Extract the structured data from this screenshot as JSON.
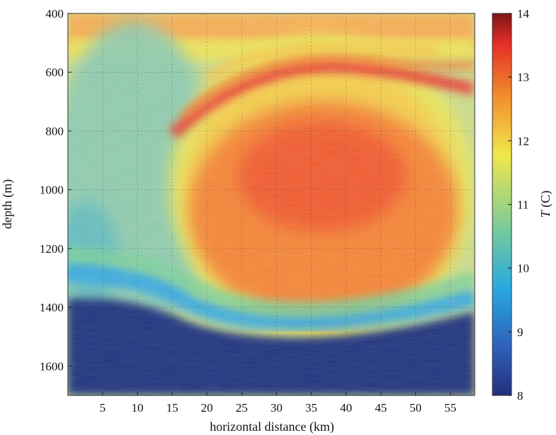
{
  "chart_data": {
    "type": "heatmap",
    "title": "",
    "xlabel": "horizontal distance (km)",
    "ylabel": "depth (m)",
    "xlim": [
      0,
      58.5
    ],
    "ylim": [
      400,
      1700
    ],
    "y_inverted": true,
    "grid": true,
    "x_ticks": [
      5,
      10,
      15,
      20,
      25,
      30,
      35,
      40,
      45,
      50,
      55
    ],
    "y_ticks": [
      400,
      600,
      800,
      1000,
      1200,
      1400,
      1600
    ],
    "colorbar": {
      "label_italic": "T",
      "label_rest": " (C)",
      "range": [
        8,
        14
      ],
      "ticks": [
        8,
        9,
        10,
        11,
        12,
        13,
        14
      ],
      "colormap": "jet-like",
      "colors": [
        "#21307a",
        "#2f5db8",
        "#27a9e1",
        "#6fc8a0",
        "#f1e74a",
        "#f28f2d",
        "#e52f27",
        "#7d1416"
      ]
    },
    "fields": [
      {
        "name": "warm eddy core",
        "x": 40,
        "depth": 1060,
        "x_extent_km": 22,
        "depth_extent_m": 260,
        "temperature_C": 12.5
      },
      {
        "name": "upper warm filament",
        "x": 44,
        "depth": 700,
        "temperature_C": 12.9
      },
      {
        "name": "deep cold layer",
        "x": 20,
        "depth": 1550,
        "temperature_C": 8.4
      },
      {
        "name": "surface warm layer",
        "x": 30,
        "depth": 420,
        "temperature_C": 12.4
      }
    ]
  }
}
